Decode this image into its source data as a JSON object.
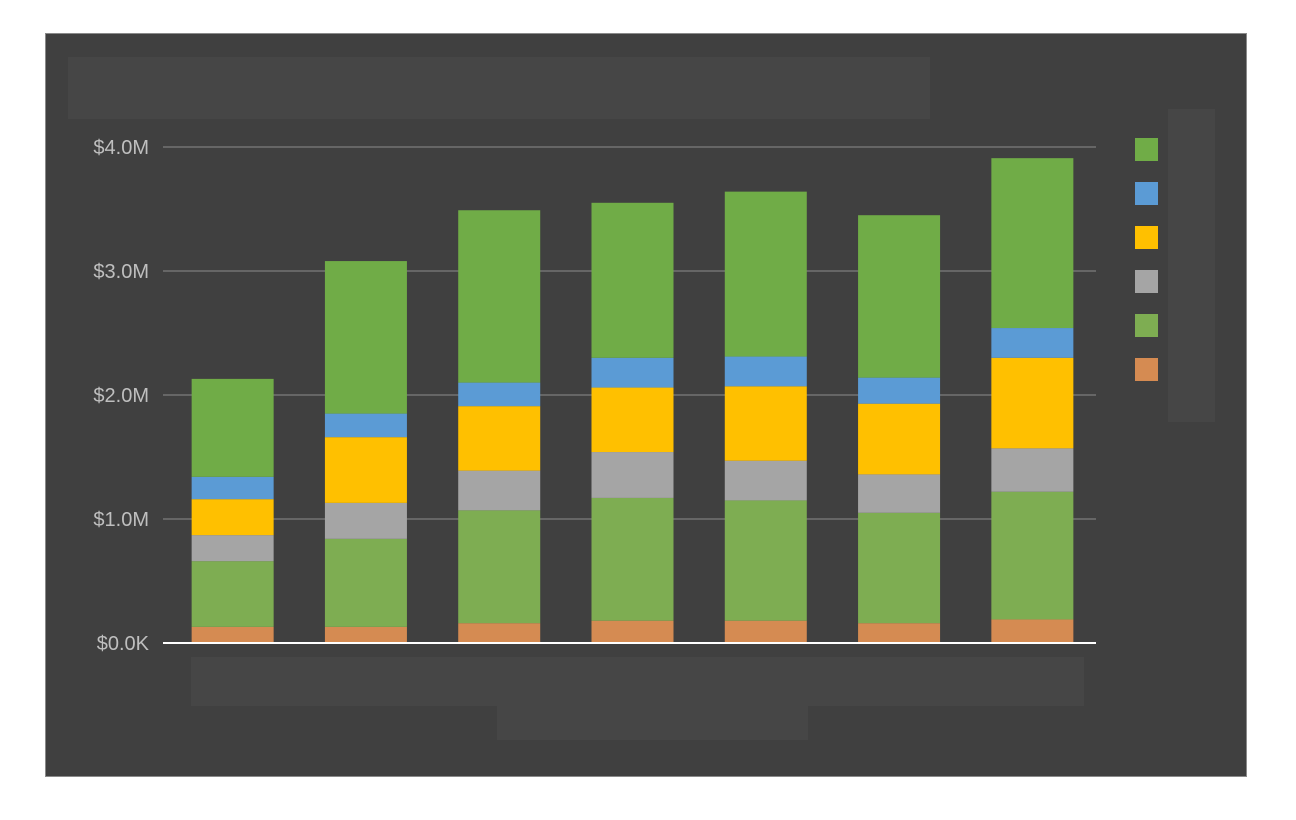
{
  "chart_data": {
    "type": "bar",
    "stacked": true,
    "categories": [
      "",
      "",
      "",
      "",
      "",
      "",
      ""
    ],
    "series": [
      {
        "color": "#d58b52",
        "values": [
          0.13,
          0.13,
          0.16,
          0.18,
          0.18,
          0.16,
          0.19
        ]
      },
      {
        "color": "#7ead52",
        "values": [
          0.53,
          0.71,
          0.91,
          0.99,
          0.97,
          0.89,
          1.03
        ]
      },
      {
        "color": "#a5a5a5",
        "values": [
          0.21,
          0.29,
          0.32,
          0.37,
          0.32,
          0.31,
          0.35
        ]
      },
      {
        "color": "#ffc000",
        "values": [
          0.29,
          0.53,
          0.52,
          0.52,
          0.6,
          0.57,
          0.73
        ]
      },
      {
        "color": "#5b9bd5",
        "values": [
          0.18,
          0.19,
          0.19,
          0.24,
          0.24,
          0.21,
          0.24
        ]
      },
      {
        "color": "#70ac47",
        "values": [
          0.79,
          1.23,
          1.39,
          1.25,
          1.33,
          1.31,
          1.37
        ]
      }
    ],
    "y_ticks": [
      "$0.0K",
      "$1.0M",
      "$2.0M",
      "$3.0M",
      "$4.0M"
    ],
    "ylim": [
      0,
      4.0
    ],
    "grid": true,
    "legend_position": "right"
  }
}
